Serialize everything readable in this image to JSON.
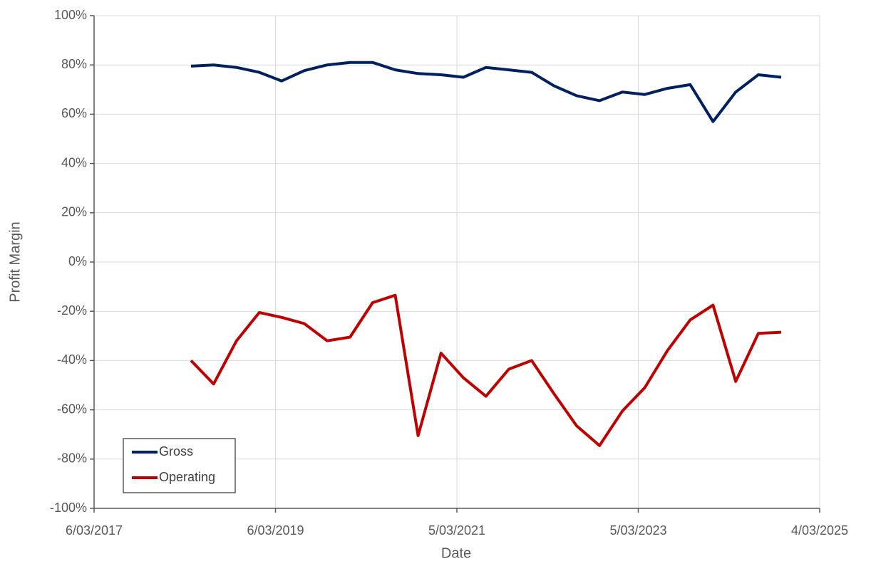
{
  "chart_data": {
    "type": "line",
    "x_label": "Date",
    "y_label": "Profit Margin",
    "x": [
      "2018-03-31",
      "2018-06-30",
      "2018-09-30",
      "2018-12-31",
      "2019-03-31",
      "2019-06-30",
      "2019-09-30",
      "2019-12-31",
      "2020-03-31",
      "2020-06-30",
      "2020-09-30",
      "2020-12-31",
      "2021-03-31",
      "2021-06-30",
      "2021-09-30",
      "2021-12-31",
      "2022-03-31",
      "2022-06-30",
      "2022-09-30",
      "2022-12-31",
      "2023-03-31",
      "2023-06-30",
      "2023-09-30",
      "2023-12-31",
      "2024-03-31",
      "2024-06-30",
      "2024-09-30"
    ],
    "series": [
      {
        "name": "Gross",
        "color": "#002060",
        "values": [
          79.5,
          80,
          79,
          77,
          73.5,
          77.7,
          80,
          81,
          81,
          78,
          76.5,
          76,
          75,
          79,
          78,
          77,
          71.5,
          67.5,
          65.5,
          69,
          68,
          70.5,
          72,
          57,
          69,
          76,
          75
        ]
      },
      {
        "name": "Operating",
        "color": "#c00000",
        "values": [
          -40,
          -49.5,
          -32,
          -20.5,
          -22.5,
          -25,
          -32,
          -30.5,
          -16.5,
          -13.5,
          -70.5,
          -37,
          -47,
          -54.5,
          -43.5,
          -40,
          -53.5,
          -66.5,
          -74.5,
          -60.5,
          -51,
          -36,
          -23.5,
          -17.5,
          -48.5,
          -29,
          -28.5
        ]
      }
    ],
    "xlim": [
      "2017-03-06",
      "2025-03-04"
    ],
    "xticks": [
      {
        "value": "2017-03-06",
        "label": "6/03/2017"
      },
      {
        "value": "2019-03-06",
        "label": "6/03/2019"
      },
      {
        "value": "2021-03-05",
        "label": "5/03/2021"
      },
      {
        "value": "2023-03-05",
        "label": "5/03/2023"
      },
      {
        "value": "2025-03-04",
        "label": "4/03/2025"
      }
    ],
    "ylim": [
      -100,
      100
    ],
    "yticks": [
      {
        "value": -100,
        "label": "-100%"
      },
      {
        "value": -80,
        "label": "-80%"
      },
      {
        "value": -60,
        "label": "-60%"
      },
      {
        "value": -40,
        "label": "-40%"
      },
      {
        "value": -20,
        "label": "-20%"
      },
      {
        "value": 0,
        "label": "0%"
      },
      {
        "value": 20,
        "label": "20%"
      },
      {
        "value": 40,
        "label": "40%"
      },
      {
        "value": 60,
        "label": "60%"
      },
      {
        "value": 80,
        "label": "80%"
      },
      {
        "value": 100,
        "label": "100%"
      }
    ],
    "grid": true,
    "legend": "lower left"
  }
}
